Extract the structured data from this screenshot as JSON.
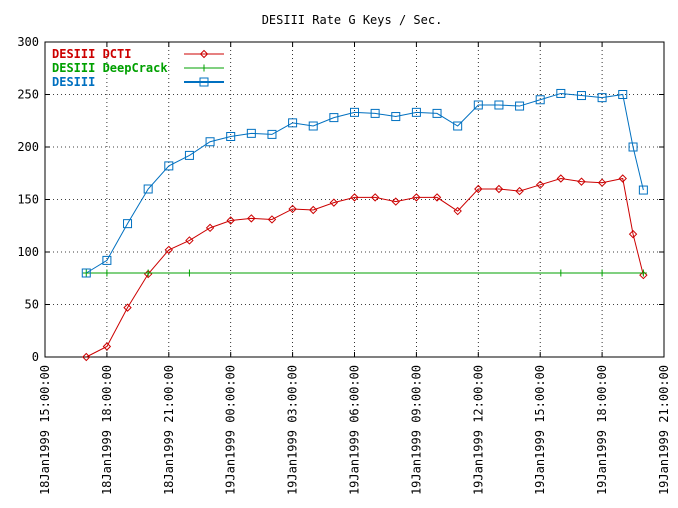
{
  "chart_data": {
    "type": "line",
    "title": "DESIII Rate G Keys / Sec.",
    "xlabel": "",
    "ylabel": "",
    "ylim": [
      0,
      300
    ],
    "y_ticks": [
      0,
      50,
      100,
      150,
      200,
      250,
      300
    ],
    "x_domain": [
      "1999-01-18 15:00",
      "1999-01-19 21:00"
    ],
    "x_ticks": [
      {
        "t": "1999-01-18 15:00",
        "label": "18Jan1999 15:00:00"
      },
      {
        "t": "1999-01-18 18:00",
        "label": "18Jan1999 18:00:00"
      },
      {
        "t": "1999-01-18 21:00",
        "label": "18Jan1999 21:00:00"
      },
      {
        "t": "1999-01-19 00:00",
        "label": "19Jan1999 00:00:00"
      },
      {
        "t": "1999-01-19 03:00",
        "label": "19Jan1999 03:00:00"
      },
      {
        "t": "1999-01-19 06:00",
        "label": "19Jan1999 06:00:00"
      },
      {
        "t": "1999-01-19 09:00",
        "label": "19Jan1999 09:00:00"
      },
      {
        "t": "1999-01-19 12:00",
        "label": "19Jan1999 12:00:00"
      },
      {
        "t": "1999-01-19 15:00",
        "label": "19Jan1999 15:00:00"
      },
      {
        "t": "1999-01-19 18:00",
        "label": "19Jan1999 18:00:00"
      },
      {
        "t": "1999-01-19 21:00",
        "label": "19Jan1999 21:00:00"
      }
    ],
    "grid": true,
    "legend": "top-left",
    "series": [
      {
        "name": "DESIII DCTI",
        "color": "#cc0000",
        "marker": "diamond",
        "points": [
          {
            "x": "1999-01-18 17:00",
            "y": 0
          },
          {
            "x": "1999-01-18 18:00",
            "y": 10
          },
          {
            "x": "1999-01-18 19:00",
            "y": 47
          },
          {
            "x": "1999-01-18 20:00",
            "y": 79
          },
          {
            "x": "1999-01-18 21:00",
            "y": 102
          },
          {
            "x": "1999-01-18 22:00",
            "y": 111
          },
          {
            "x": "1999-01-18 23:00",
            "y": 123
          },
          {
            "x": "1999-01-19 00:00",
            "y": 130
          },
          {
            "x": "1999-01-19 01:00",
            "y": 132
          },
          {
            "x": "1999-01-19 02:00",
            "y": 131
          },
          {
            "x": "1999-01-19 03:00",
            "y": 141
          },
          {
            "x": "1999-01-19 04:00",
            "y": 140
          },
          {
            "x": "1999-01-19 05:00",
            "y": 147
          },
          {
            "x": "1999-01-19 06:00",
            "y": 152
          },
          {
            "x": "1999-01-19 07:00",
            "y": 152
          },
          {
            "x": "1999-01-19 08:00",
            "y": 148
          },
          {
            "x": "1999-01-19 09:00",
            "y": 152
          },
          {
            "x": "1999-01-19 10:00",
            "y": 152
          },
          {
            "x": "1999-01-19 11:00",
            "y": 139
          },
          {
            "x": "1999-01-19 12:00",
            "y": 160
          },
          {
            "x": "1999-01-19 13:00",
            "y": 160
          },
          {
            "x": "1999-01-19 14:00",
            "y": 158
          },
          {
            "x": "1999-01-19 15:00",
            "y": 164
          },
          {
            "x": "1999-01-19 16:00",
            "y": 170
          },
          {
            "x": "1999-01-19 17:00",
            "y": 167
          },
          {
            "x": "1999-01-19 18:00",
            "y": 166
          },
          {
            "x": "1999-01-19 19:00",
            "y": 170
          },
          {
            "x": "1999-01-19 19:30",
            "y": 117
          },
          {
            "x": "1999-01-19 20:00",
            "y": 78
          }
        ]
      },
      {
        "name": "DESIII DeepCrack",
        "color": "#00a000",
        "marker": "plus",
        "points": [
          {
            "x": "1999-01-18 17:00",
            "y": 80
          },
          {
            "x": "1999-01-18 18:00",
            "y": 80
          },
          {
            "x": "1999-01-18 20:00",
            "y": 80
          },
          {
            "x": "1999-01-18 22:00",
            "y": 80
          },
          {
            "x": "1999-01-19 16:00",
            "y": 80
          },
          {
            "x": "1999-01-19 18:00",
            "y": 80
          },
          {
            "x": "1999-01-19 20:00",
            "y": 80
          }
        ]
      },
      {
        "name": "DESIII",
        "color": "#0070c0",
        "marker": "square",
        "points": [
          {
            "x": "1999-01-18 17:00",
            "y": 80
          },
          {
            "x": "1999-01-18 18:00",
            "y": 92
          },
          {
            "x": "1999-01-18 19:00",
            "y": 127
          },
          {
            "x": "1999-01-18 20:00",
            "y": 160
          },
          {
            "x": "1999-01-18 21:00",
            "y": 182
          },
          {
            "x": "1999-01-18 22:00",
            "y": 192
          },
          {
            "x": "1999-01-18 23:00",
            "y": 205
          },
          {
            "x": "1999-01-19 00:00",
            "y": 210
          },
          {
            "x": "1999-01-19 01:00",
            "y": 213
          },
          {
            "x": "1999-01-19 02:00",
            "y": 212
          },
          {
            "x": "1999-01-19 03:00",
            "y": 223
          },
          {
            "x": "1999-01-19 04:00",
            "y": 220
          },
          {
            "x": "1999-01-19 05:00",
            "y": 228
          },
          {
            "x": "1999-01-19 06:00",
            "y": 233
          },
          {
            "x": "1999-01-19 07:00",
            "y": 232
          },
          {
            "x": "1999-01-19 08:00",
            "y": 229
          },
          {
            "x": "1999-01-19 09:00",
            "y": 233
          },
          {
            "x": "1999-01-19 10:00",
            "y": 232
          },
          {
            "x": "1999-01-19 11:00",
            "y": 220
          },
          {
            "x": "1999-01-19 12:00",
            "y": 240
          },
          {
            "x": "1999-01-19 13:00",
            "y": 240
          },
          {
            "x": "1999-01-19 14:00",
            "y": 239
          },
          {
            "x": "1999-01-19 15:00",
            "y": 245
          },
          {
            "x": "1999-01-19 16:00",
            "y": 251
          },
          {
            "x": "1999-01-19 17:00",
            "y": 249
          },
          {
            "x": "1999-01-19 18:00",
            "y": 247
          },
          {
            "x": "1999-01-19 19:00",
            "y": 250
          },
          {
            "x": "1999-01-19 19:30",
            "y": 200
          },
          {
            "x": "1999-01-19 20:00",
            "y": 159
          }
        ]
      }
    ]
  }
}
